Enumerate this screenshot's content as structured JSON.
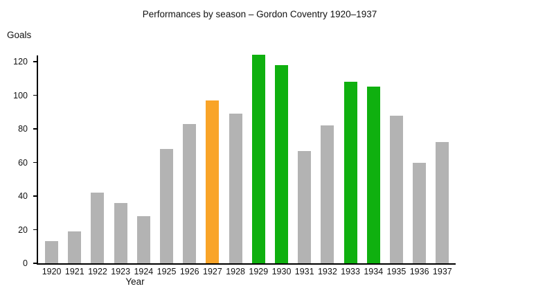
{
  "title": "Performances by season – Gordon Coventry 1920–1937",
  "chart_data": {
    "type": "bar",
    "title": "Performances by season – Gordon Coventry 1920–1937",
    "xlabel": "Year",
    "ylabel": "Goals",
    "categories": [
      "1920",
      "1921",
      "1922",
      "1923",
      "1924",
      "1925",
      "1926",
      "1927",
      "1928",
      "1929",
      "1930",
      "1931",
      "1932",
      "1933",
      "1934",
      "1935",
      "1936",
      "1937"
    ],
    "values": [
      13,
      19,
      42,
      36,
      28,
      68,
      83,
      97,
      89,
      124,
      118,
      67,
      82,
      108,
      105,
      88,
      60,
      72
    ],
    "bar_colors": [
      "gray",
      "gray",
      "gray",
      "gray",
      "gray",
      "gray",
      "gray",
      "orange",
      "gray",
      "green",
      "green",
      "gray",
      "gray",
      "green",
      "green",
      "gray",
      "gray",
      "gray"
    ],
    "ylim": [
      0,
      130
    ],
    "yticks": [
      0,
      20,
      40,
      60,
      80,
      100,
      120
    ],
    "grid": false,
    "legend": false
  },
  "colors": {
    "gray": "#b3b3b3",
    "orange": "#f9a428",
    "green": "#0fb00f",
    "axis": "#000000",
    "background": "#ffffff"
  }
}
